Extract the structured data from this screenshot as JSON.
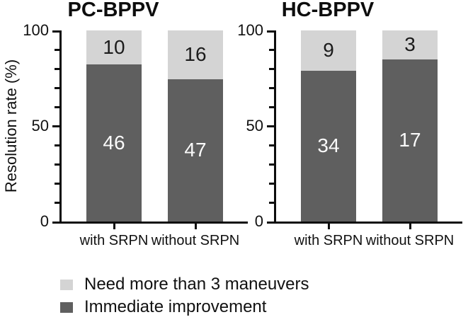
{
  "chart_data": {
    "type": "bar",
    "stacked": true,
    "ylabel": "Resolution rate (%)",
    "ylim": [
      0,
      100
    ],
    "yticks": [
      0,
      50,
      100
    ],
    "y_minor_interval": 10,
    "grid": false,
    "legend_position": "bottom-left",
    "bar_heights_note": "segment height = count / column total * 100 (%)",
    "panels": [
      {
        "title": "PC-BPPV",
        "categories": [
          "with SRPN",
          "without SRPN"
        ],
        "series": [
          {
            "name": "Immediate improvement",
            "color": "#5f5f5f",
            "text_color": "#fafafa",
            "counts": [
              46,
              47
            ]
          },
          {
            "name": "Need more than 3 maneuvers",
            "color": "#d4d4d4",
            "text_color": "#1c1c1c",
            "counts": [
              10,
              16
            ]
          }
        ]
      },
      {
        "title": "HC-BPPV",
        "categories": [
          "with SRPN",
          "without SRPN"
        ],
        "series": [
          {
            "name": "Immediate improvement",
            "color": "#5f5f5f",
            "text_color": "#fafafa",
            "counts": [
              34,
              17
            ]
          },
          {
            "name": "Need more than 3 maneuvers",
            "color": "#d4d4d4",
            "text_color": "#1c1c1c",
            "counts": [
              9,
              3
            ]
          }
        ]
      }
    ],
    "legend": [
      {
        "label": "Need more than 3 maneuvers",
        "color": "#d4d4d4"
      },
      {
        "label": "Immediate improvement",
        "color": "#5f5f5f"
      }
    ],
    "colors": {
      "axis": "#0d0d0d",
      "background": "#ffffff"
    }
  }
}
